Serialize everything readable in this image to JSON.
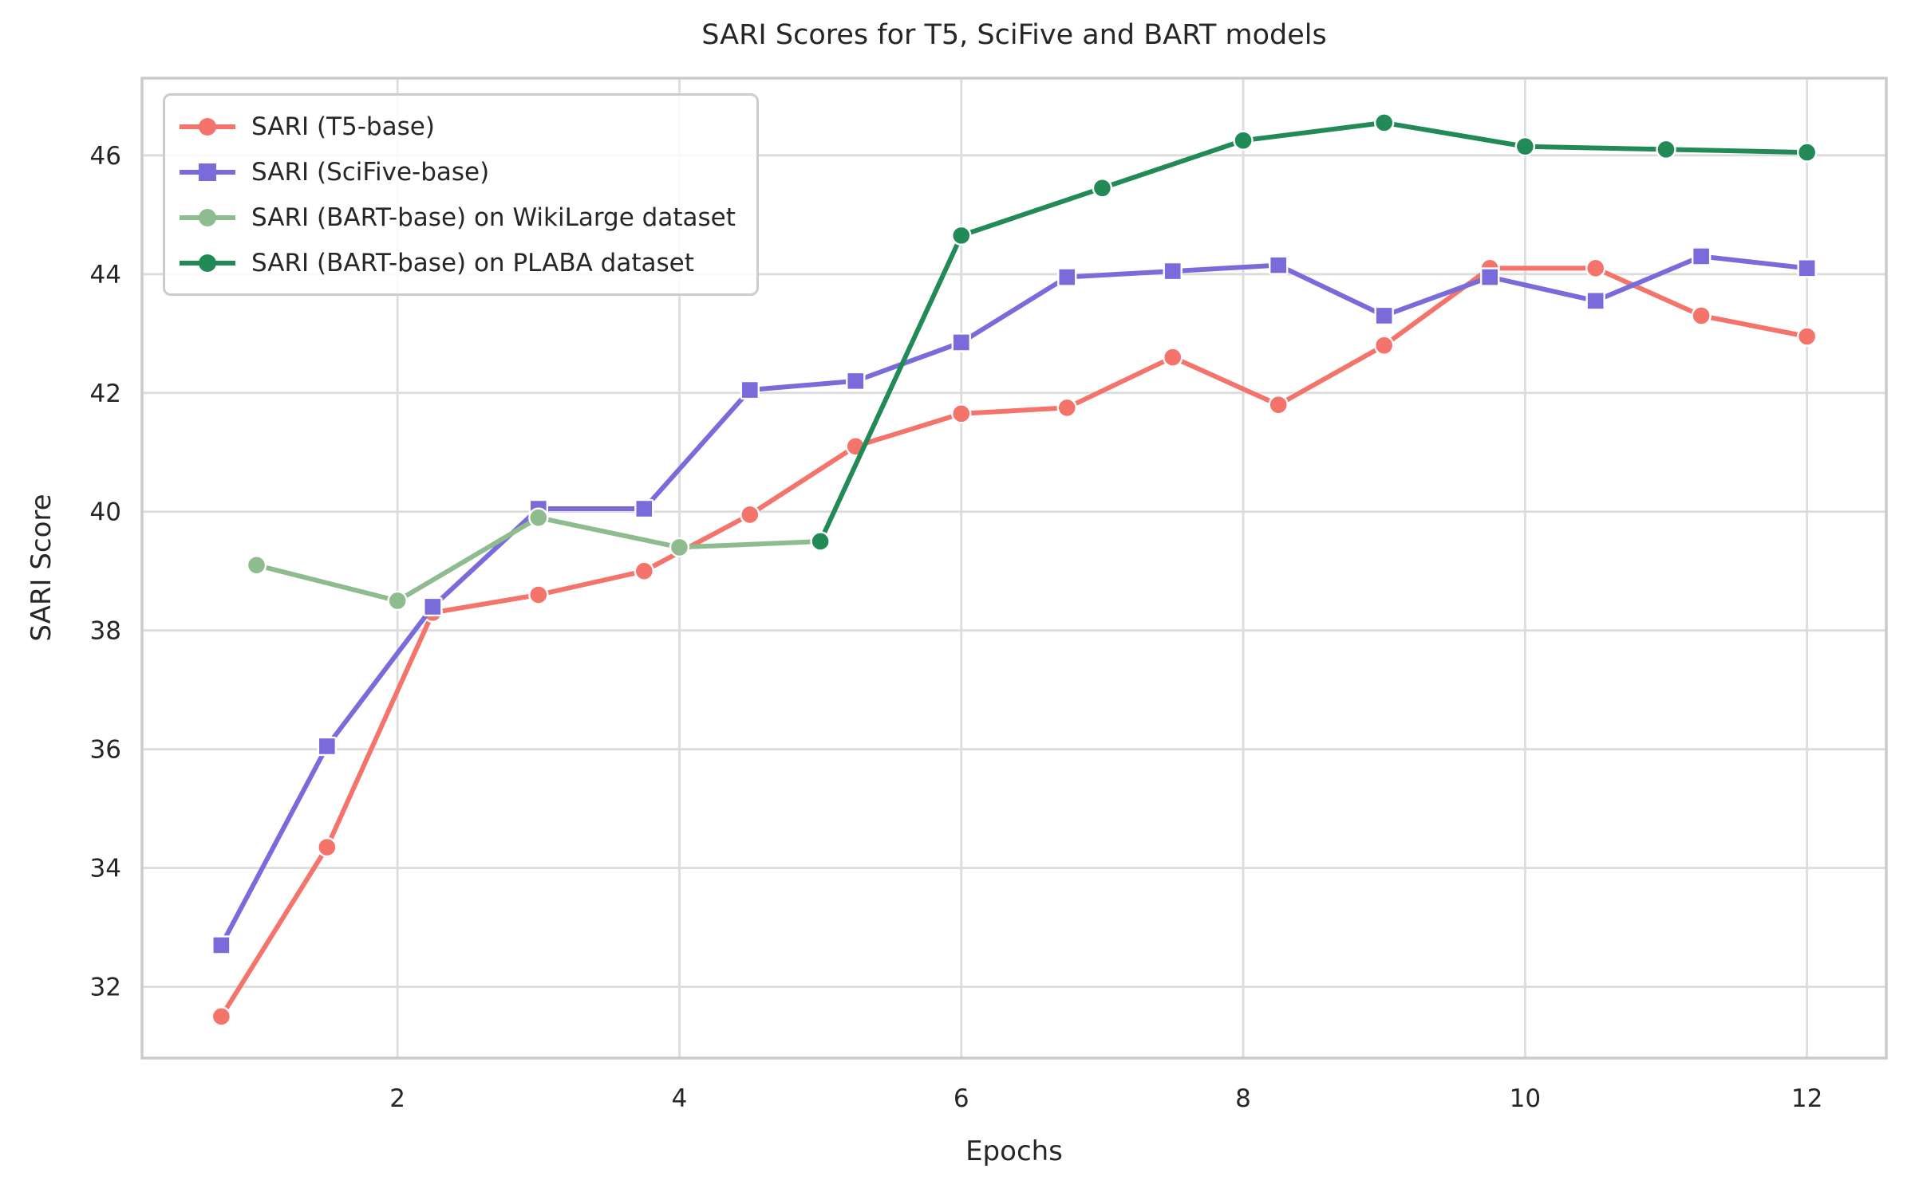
{
  "figure": {
    "title": "SARI Scores for T5, SciFive and BART models"
  },
  "chart_data": {
    "type": "line",
    "title": "SARI Scores for T5, SciFive and BART models",
    "xlabel": "Epochs",
    "ylabel": "SARI Score",
    "xlim": [
      0.1875,
      12.5625
    ],
    "ylim": [
      30.8,
      47.3
    ],
    "xticks": [
      2,
      4,
      6,
      8,
      10,
      12
    ],
    "yticks": [
      32,
      34,
      36,
      38,
      40,
      42,
      44,
      46
    ],
    "grid": true,
    "grid_color": "#dcdcdc",
    "spine_color": "#cbcbcb",
    "legend_position": "upper left",
    "series": [
      {
        "name": "SARI (T5-base)",
        "color": "#f4746c",
        "marker": "circle",
        "x": [
          0.75,
          1.5,
          2.25,
          3,
          3.75,
          4.5,
          5.25,
          6,
          6.75,
          7.5,
          8.25,
          9,
          9.75,
          10.5,
          11.25,
          12
        ],
        "y": [
          31.5,
          34.35,
          38.3,
          38.6,
          39.0,
          39.95,
          41.1,
          41.65,
          41.75,
          42.6,
          41.8,
          42.8,
          44.1,
          44.1,
          43.3,
          42.95
        ]
      },
      {
        "name": "SARI (SciFive-base)",
        "color": "#7a6bdb",
        "marker": "square",
        "x": [
          0.75,
          1.5,
          2.25,
          3,
          3.75,
          4.5,
          5.25,
          6,
          6.75,
          7.5,
          8.25,
          9,
          9.75,
          10.5,
          11.25,
          12
        ],
        "y": [
          32.7,
          36.05,
          38.4,
          40.05,
          40.05,
          42.05,
          42.2,
          42.85,
          43.95,
          44.05,
          44.15,
          43.3,
          43.95,
          43.55,
          44.3,
          44.1
        ]
      },
      {
        "name": "SARI (BART-base) on WikiLarge dataset",
        "color": "#8fbc8f",
        "marker": "circle",
        "x": [
          1,
          2,
          3,
          4,
          5
        ],
        "y": [
          39.1,
          38.5,
          39.9,
          39.4,
          39.5
        ]
      },
      {
        "name": "SARI (BART-base) on PLABA dataset",
        "color": "#218a57",
        "marker": "circle",
        "x": [
          5,
          6,
          7,
          8,
          9,
          10,
          11,
          12
        ],
        "y": [
          39.5,
          44.65,
          45.45,
          46.25,
          46.55,
          46.15,
          46.1,
          46.05
        ]
      }
    ]
  }
}
